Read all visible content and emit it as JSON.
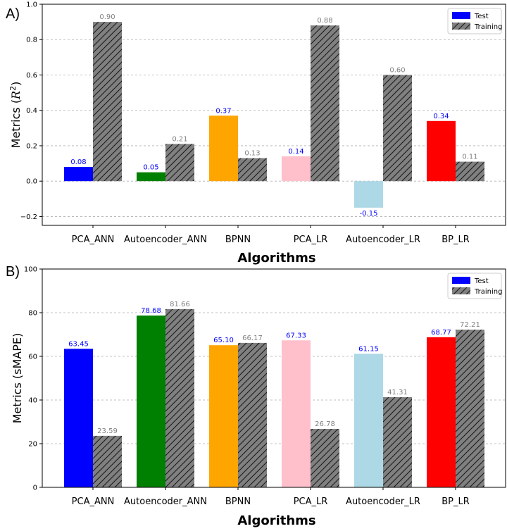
{
  "colors": {
    "test": [
      "#0000ff",
      "#008000",
      "#ffa500",
      "#ffc0cb",
      "#add8e6",
      "#ff0000"
    ],
    "training_fill": "#808080",
    "training_label": "#808080",
    "test_label": "#0000ff",
    "grid": "#b0b0b0"
  },
  "chart_data": [
    {
      "panel_label": "A)",
      "type": "bar",
      "categories": [
        "PCA_ANN",
        "Autoencoder_ANN",
        "BPNN",
        "PCA_LR",
        "Autoencoder_LR",
        "BP_LR"
      ],
      "series": [
        {
          "name": "Test",
          "values": [
            0.08,
            0.05,
            0.37,
            0.14,
            -0.15,
            0.34
          ],
          "labels": [
            "0.08",
            "0.05",
            "0.37",
            "0.14",
            "-0.15",
            "0.34"
          ]
        },
        {
          "name": "Training",
          "values": [
            0.9,
            0.21,
            0.13,
            0.88,
            0.6,
            0.11
          ],
          "labels": [
            "0.90",
            "0.21",
            "0.13",
            "0.88",
            "0.60",
            "0.11"
          ]
        }
      ],
      "xlabel": "Algorithms",
      "ylabel": "Metrics (R²)",
      "ylabel_main": "Metrics (",
      "ylabel_var": "R",
      "ylabel_sup": "2",
      "ylabel_close": ")",
      "ylim": [
        -0.25,
        1.0
      ],
      "yticks": [
        -0.2,
        0.0,
        0.2,
        0.4,
        0.6,
        0.8,
        1.0
      ],
      "ytick_labels": [
        "−0.2",
        "0.0",
        "0.2",
        "0.4",
        "0.6",
        "0.8",
        "1.0"
      ],
      "grid": true,
      "legend": "top-right"
    },
    {
      "panel_label": "B)",
      "type": "bar",
      "categories": [
        "PCA_ANN",
        "Autoencoder_ANN",
        "BPNN",
        "PCA_LR",
        "Autoencoder_LR",
        "BP_LR"
      ],
      "series": [
        {
          "name": "Test",
          "values": [
            63.45,
            78.68,
            65.1,
            67.33,
            61.15,
            68.77
          ],
          "labels": [
            "63.45",
            "78.68",
            "65.10",
            "67.33",
            "61.15",
            "68.77"
          ]
        },
        {
          "name": "Training",
          "values": [
            23.59,
            81.66,
            66.17,
            26.78,
            41.31,
            72.21
          ],
          "labels": [
            "23.59",
            "81.66",
            "66.17",
            "26.78",
            "41.31",
            "72.21"
          ]
        }
      ],
      "xlabel": "Algorithms",
      "ylabel": "Metrics (sMAPE)",
      "ylim": [
        0,
        100
      ],
      "yticks": [
        0,
        20,
        40,
        60,
        80,
        100
      ],
      "ytick_labels": [
        "0",
        "20",
        "40",
        "60",
        "80",
        "100"
      ],
      "grid": true,
      "legend": "top-right"
    }
  ]
}
